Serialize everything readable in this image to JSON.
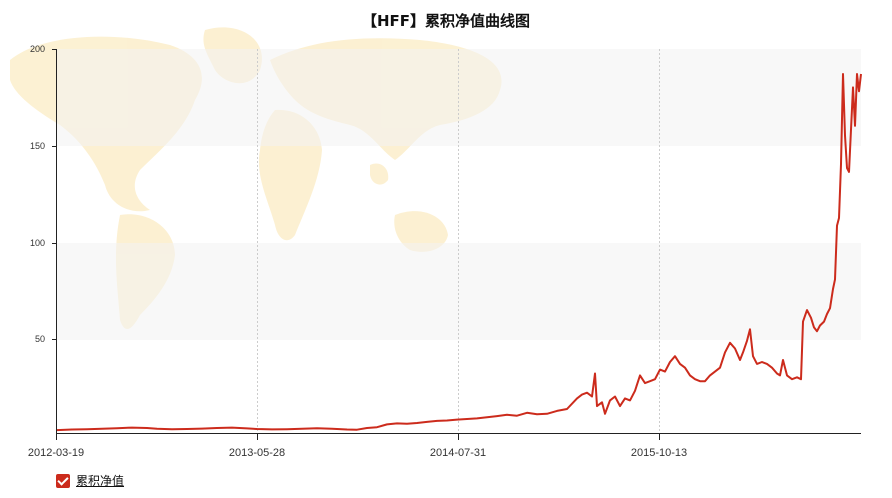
{
  "chart_data": {
    "type": "line",
    "title": "【HFF】累积净值曲线图",
    "xlabel": "",
    "ylabel": "",
    "ylim": [
      0,
      200
    ],
    "y_ticks": [
      50,
      100,
      150,
      200
    ],
    "x_ticks": [
      "2012-03-19",
      "2013-05-28",
      "2014-07-31",
      "2015-10-13"
    ],
    "grid": "vertical dashed at x ticks; alternating horizontal bands",
    "legend": "bottom-left",
    "series": [
      {
        "name": "累积净值",
        "color": "#cc2b1c",
        "points": [
          [
            0,
            1.5
          ],
          [
            15,
            1.8
          ],
          [
            30,
            2.0
          ],
          [
            45,
            2.2
          ],
          [
            60,
            2.5
          ],
          [
            75,
            2.8
          ],
          [
            90,
            2.6
          ],
          [
            100,
            2.2
          ],
          [
            115,
            2.0
          ],
          [
            130,
            2.1
          ],
          [
            145,
            2.3
          ],
          [
            160,
            2.6
          ],
          [
            175,
            2.8
          ],
          [
            190,
            2.4
          ],
          [
            200,
            2.1
          ],
          [
            215,
            1.9
          ],
          [
            230,
            2.0
          ],
          [
            245,
            2.2
          ],
          [
            260,
            2.5
          ],
          [
            275,
            2.2
          ],
          [
            290,
            1.8
          ],
          [
            300,
            1.7
          ],
          [
            310,
            2.6
          ],
          [
            320,
            3.0
          ],
          [
            330,
            4.5
          ],
          [
            340,
            5.0
          ],
          [
            350,
            4.8
          ],
          [
            360,
            5.2
          ],
          [
            370,
            5.8
          ],
          [
            380,
            6.3
          ],
          [
            390,
            6.5
          ],
          [
            400,
            7.0
          ],
          [
            410,
            7.3
          ],
          [
            420,
            7.6
          ],
          [
            430,
            8.2
          ],
          [
            440,
            8.8
          ],
          [
            450,
            9.5
          ],
          [
            460,
            9.0
          ],
          [
            470,
            10.5
          ],
          [
            480,
            9.8
          ],
          [
            490,
            10.0
          ],
          [
            500,
            11.5
          ],
          [
            510,
            12.5
          ],
          [
            520,
            18.0
          ],
          [
            525,
            20.0
          ],
          [
            530,
            21.0
          ],
          [
            535,
            19.0
          ],
          [
            538,
            31.0
          ],
          [
            540,
            14.0
          ],
          [
            545,
            16.0
          ],
          [
            548,
            10.0
          ],
          [
            553,
            17.0
          ],
          [
            558,
            19.0
          ],
          [
            563,
            14.0
          ],
          [
            568,
            18.0
          ],
          [
            573,
            17.0
          ],
          [
            578,
            22.0
          ],
          [
            583,
            30.0
          ],
          [
            588,
            26.0
          ],
          [
            593,
            27.0
          ],
          [
            598,
            28.0
          ],
          [
            603,
            33.0
          ],
          [
            608,
            32.0
          ],
          [
            613,
            37.0
          ],
          [
            618,
            40.0
          ],
          [
            623,
            36.0
          ],
          [
            628,
            34.0
          ],
          [
            633,
            30.0
          ],
          [
            638,
            28.0
          ],
          [
            643,
            27.0
          ],
          [
            648,
            27.0
          ],
          [
            653,
            30.0
          ],
          [
            658,
            32.0
          ],
          [
            663,
            34.0
          ],
          [
            668,
            42.0
          ],
          [
            673,
            47.0
          ],
          [
            678,
            44.0
          ],
          [
            683,
            38.0
          ],
          [
            686,
            42.0
          ],
          [
            690,
            48.0
          ],
          [
            693,
            54.0
          ],
          [
            696,
            40.0
          ],
          [
            700,
            36.0
          ],
          [
            705,
            37.0
          ],
          [
            710,
            36.0
          ],
          [
            715,
            34.0
          ],
          [
            720,
            31.0
          ],
          [
            723,
            30.0
          ],
          [
            726,
            38.0
          ],
          [
            730,
            30.0
          ],
          [
            735,
            28.0
          ],
          [
            740,
            29.0
          ],
          [
            744,
            28.0
          ],
          [
            746,
            58.0
          ],
          [
            750,
            64.0
          ],
          [
            754,
            60.0
          ],
          [
            757,
            55.0
          ],
          [
            760,
            53.0
          ],
          [
            763,
            56.0
          ],
          [
            767,
            58.0
          ],
          [
            770,
            62.0
          ],
          [
            773,
            65.0
          ],
          [
            776,
            75.0
          ],
          [
            778,
            80.0
          ],
          [
            780,
            108.0
          ],
          [
            782,
            112.0
          ],
          [
            784,
            140.0
          ],
          [
            786,
            187.0
          ],
          [
            788,
            155.0
          ],
          [
            790,
            138.0
          ],
          [
            792,
            136.0
          ],
          [
            794,
            158.0
          ],
          [
            796,
            180.0
          ],
          [
            798,
            160.0
          ],
          [
            800,
            187.0
          ],
          [
            802,
            178.0
          ],
          [
            804,
            187.0
          ]
        ]
      }
    ]
  }
}
